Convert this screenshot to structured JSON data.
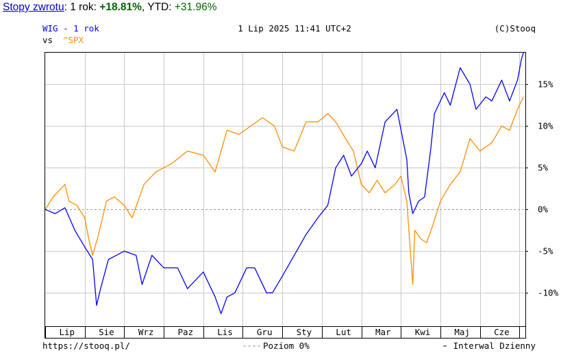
{
  "summary": {
    "link_label": "Stopy zwrotu",
    "period_text": ": 1 rok: ",
    "one_year_return": "+18.81%",
    "ytd_text": ", YTD: ",
    "ytd_return": "+31.96%"
  },
  "header": {
    "series_label": "WIG - 1 rok",
    "vs_label": "vs",
    "compare_label": "^SPX",
    "timestamp": "1 Lip 2025 11:41 UTC+2",
    "copyright": "(C)Stooq"
  },
  "footer": {
    "url": "https://stooq.pl/",
    "baseline_label": "Poziom 0%",
    "interval_label": "Interwal Dzienny"
  },
  "colors": {
    "wig": "#0000ee",
    "spx": "#ff8c00",
    "grid": "#c8c8c8",
    "baseline": "#999999",
    "frame": "#000000"
  },
  "chart_data": {
    "type": "line",
    "title": "WIG - 1 rok",
    "xlabel": "",
    "ylabel": "",
    "unit": "%",
    "ylim": [
      -14,
      18.8
    ],
    "y_ticks": [
      -10,
      -5,
      0,
      5,
      10,
      15
    ],
    "y_tick_labels": [
      "-10%",
      "-5%",
      "0%",
      "5%",
      "10%",
      "15%"
    ],
    "baseline": 0,
    "grid": true,
    "x_range": [
      0,
      12.15
    ],
    "x_ticks": [
      0.55,
      1.55,
      2.55,
      3.55,
      4.55,
      5.55,
      6.55,
      7.55,
      8.55,
      9.55,
      10.55,
      11.55
    ],
    "x_tick_labels": [
      "Lip",
      "Sie",
      "Wrz",
      "Paz",
      "Lis",
      "Gru",
      "Sty",
      "Lut",
      "Mar",
      "Kwi",
      "Maj",
      "Cze"
    ],
    "series": [
      {
        "name": "WIG",
        "color": "#0000ee",
        "points": [
          [
            0.0,
            0.0
          ],
          [
            0.25,
            -0.5
          ],
          [
            0.5,
            0.2
          ],
          [
            0.75,
            -2.5
          ],
          [
            1.0,
            -4.5
          ],
          [
            1.2,
            -6.0
          ],
          [
            1.3,
            -11.5
          ],
          [
            1.4,
            -9.5
          ],
          [
            1.6,
            -6.0
          ],
          [
            2.0,
            -5.0
          ],
          [
            2.3,
            -5.5
          ],
          [
            2.45,
            -9.0
          ],
          [
            2.7,
            -5.5
          ],
          [
            3.0,
            -7.0
          ],
          [
            3.35,
            -7.0
          ],
          [
            3.6,
            -9.5
          ],
          [
            4.0,
            -7.5
          ],
          [
            4.3,
            -10.5
          ],
          [
            4.45,
            -12.5
          ],
          [
            4.6,
            -10.5
          ],
          [
            4.8,
            -10.0
          ],
          [
            5.1,
            -7.0
          ],
          [
            5.3,
            -7.0
          ],
          [
            5.6,
            -10.0
          ],
          [
            5.75,
            -10.0
          ],
          [
            6.0,
            -8.0
          ],
          [
            6.3,
            -5.5
          ],
          [
            6.6,
            -3.0
          ],
          [
            6.9,
            -1.0
          ],
          [
            7.15,
            0.5
          ],
          [
            7.35,
            5.0
          ],
          [
            7.55,
            6.5
          ],
          [
            7.75,
            4.0
          ],
          [
            8.0,
            5.5
          ],
          [
            8.15,
            7.0
          ],
          [
            8.35,
            5.0
          ],
          [
            8.6,
            10.5
          ],
          [
            8.9,
            12.0
          ],
          [
            9.15,
            6.0
          ],
          [
            9.2,
            2.0
          ],
          [
            9.3,
            -0.5
          ],
          [
            9.45,
            1.0
          ],
          [
            9.6,
            1.5
          ],
          [
            9.75,
            7.0
          ],
          [
            9.85,
            11.5
          ],
          [
            10.1,
            14.0
          ],
          [
            10.25,
            12.5
          ],
          [
            10.5,
            17.0
          ],
          [
            10.75,
            15.0
          ],
          [
            10.9,
            12.0
          ],
          [
            11.15,
            13.5
          ],
          [
            11.3,
            13.0
          ],
          [
            11.55,
            15.5
          ],
          [
            11.75,
            13.0
          ],
          [
            11.95,
            15.5
          ],
          [
            12.05,
            18.0
          ],
          [
            12.1,
            18.8
          ]
        ]
      },
      {
        "name": "^SPX",
        "color": "#ff8c00",
        "points": [
          [
            0.0,
            0.0
          ],
          [
            0.2,
            1.5
          ],
          [
            0.5,
            3.0
          ],
          [
            0.6,
            1.0
          ],
          [
            0.8,
            0.5
          ],
          [
            1.0,
            -1.0
          ],
          [
            1.1,
            -3.5
          ],
          [
            1.2,
            -5.5
          ],
          [
            1.35,
            -3.0
          ],
          [
            1.55,
            1.0
          ],
          [
            1.75,
            1.5
          ],
          [
            2.0,
            0.5
          ],
          [
            2.2,
            -1.0
          ],
          [
            2.5,
            3.0
          ],
          [
            2.8,
            4.5
          ],
          [
            3.2,
            5.5
          ],
          [
            3.6,
            7.0
          ],
          [
            4.0,
            6.5
          ],
          [
            4.3,
            4.5
          ],
          [
            4.6,
            9.5
          ],
          [
            4.9,
            9.0
          ],
          [
            5.2,
            10.0
          ],
          [
            5.5,
            11.0
          ],
          [
            5.8,
            10.0
          ],
          [
            6.0,
            7.5
          ],
          [
            6.3,
            7.0
          ],
          [
            6.6,
            10.5
          ],
          [
            6.9,
            10.5
          ],
          [
            7.15,
            11.5
          ],
          [
            7.35,
            10.5
          ],
          [
            7.6,
            8.5
          ],
          [
            7.8,
            7.0
          ],
          [
            8.0,
            3.0
          ],
          [
            8.2,
            2.0
          ],
          [
            8.4,
            3.5
          ],
          [
            8.6,
            2.0
          ],
          [
            8.85,
            3.0
          ],
          [
            9.0,
            4.0
          ],
          [
            9.15,
            1.0
          ],
          [
            9.3,
            -9.0
          ],
          [
            9.35,
            -2.5
          ],
          [
            9.5,
            -3.5
          ],
          [
            9.65,
            -4.0
          ],
          [
            9.8,
            -2.0
          ],
          [
            10.0,
            1.0
          ],
          [
            10.25,
            3.0
          ],
          [
            10.5,
            4.5
          ],
          [
            10.75,
            8.5
          ],
          [
            11.0,
            7.0
          ],
          [
            11.3,
            8.0
          ],
          [
            11.55,
            10.0
          ],
          [
            11.75,
            9.5
          ],
          [
            11.95,
            12.0
          ],
          [
            12.1,
            13.5
          ]
        ]
      }
    ]
  }
}
